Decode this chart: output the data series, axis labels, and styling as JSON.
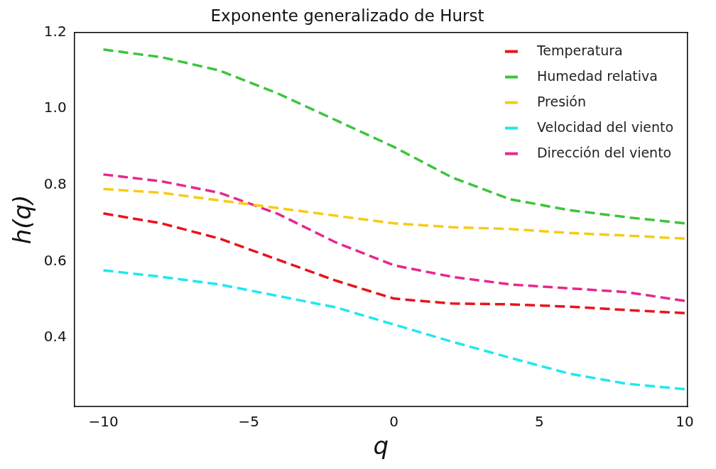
{
  "chart_data": {
    "type": "line",
    "title": "Exponente generalizado de Hurst",
    "xlabel": "q",
    "ylabel": "h(q)",
    "x": [
      -10,
      -8,
      -6,
      -4,
      -2,
      0,
      2,
      4,
      6,
      8,
      10
    ],
    "xlim": [
      -11,
      10.1
    ],
    "ylim": [
      0.22,
      1.2
    ],
    "xticks": [
      {
        "value": -10,
        "label": "−10"
      },
      {
        "value": -5,
        "label": "−5"
      },
      0,
      5,
      10
    ],
    "yticks": [
      0.4,
      0.6,
      0.8,
      {
        "value": 1.0,
        "label": "1.0"
      },
      1.2
    ],
    "grid": false,
    "legend": "top right",
    "marker": "none",
    "line_style": "dashed",
    "series": [
      {
        "name": "Temperatura",
        "color": "#e8141c",
        "values": [
          0.726,
          0.7,
          0.66,
          0.605,
          0.55,
          0.503,
          0.49,
          0.488,
          0.482,
          0.473,
          0.465
        ]
      },
      {
        "name": "Humedad relativa",
        "color": "#3cc43c",
        "values": [
          1.155,
          1.135,
          1.1,
          1.04,
          0.97,
          0.9,
          0.82,
          0.763,
          0.735,
          0.716,
          0.7
        ]
      },
      {
        "name": "Presión",
        "color": "#f5cc14",
        "values": [
          0.79,
          0.78,
          0.76,
          0.74,
          0.72,
          0.7,
          0.69,
          0.685,
          0.675,
          0.668,
          0.66
        ]
      },
      {
        "name": "Velocidad del viento",
        "color": "#1ee8f0",
        "values": [
          0.577,
          0.56,
          0.54,
          0.51,
          0.48,
          0.435,
          0.39,
          0.348,
          0.307,
          0.28,
          0.266
        ]
      },
      {
        "name": "Dirección del viento",
        "color": "#e6288c",
        "values": [
          0.828,
          0.81,
          0.78,
          0.725,
          0.65,
          0.59,
          0.56,
          0.54,
          0.53,
          0.52,
          0.497
        ]
      }
    ]
  }
}
